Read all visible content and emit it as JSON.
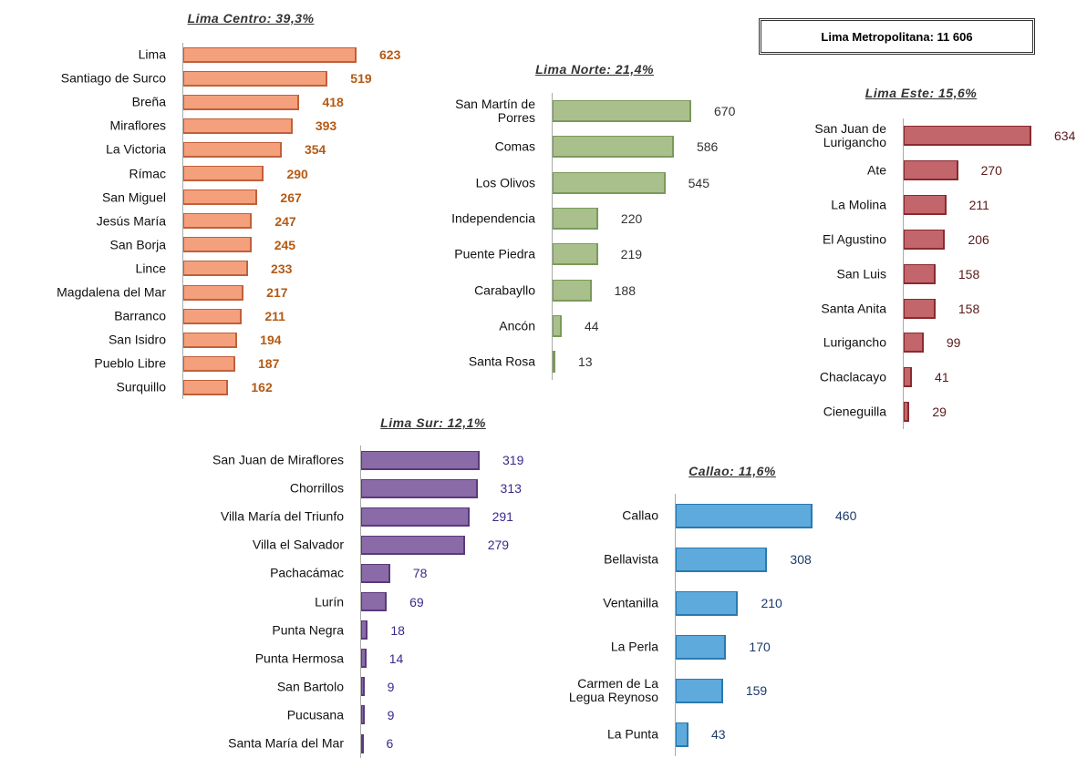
{
  "header": {
    "title": "Lima Metropolitana: 11 606"
  },
  "chart_data": [
    {
      "type": "bar",
      "orientation": "horizontal",
      "title": "Lima Centro: 39,3%",
      "color": "#f4a07c",
      "categories": [
        "Lima",
        "Santiago de Surco",
        "Breña",
        "Miraflores",
        "La Victoria",
        "Rímac",
        "San Miguel",
        "Jesús María",
        "San Borja",
        "Lince",
        "Magdalena del Mar",
        "Barranco",
        "San Isidro",
        "Pueblo Libre",
        "Surquillo"
      ],
      "values": [
        623,
        519,
        418,
        393,
        354,
        290,
        267,
        247,
        245,
        233,
        217,
        211,
        194,
        187,
        162
      ]
    },
    {
      "type": "bar",
      "orientation": "horizontal",
      "title": "Lima Norte: 21,4%",
      "color": "#a9c08c",
      "categories": [
        "San Martín de\nPorres",
        "Comas",
        "Los Olivos",
        "Independencia",
        "Puente Piedra",
        "Carabayllo",
        "Ancón",
        "Santa Rosa"
      ],
      "values": [
        670,
        586,
        545,
        220,
        219,
        188,
        44,
        13
      ]
    },
    {
      "type": "bar",
      "orientation": "horizontal",
      "title": "Lima Este: 15,6%",
      "color": "#c2666c",
      "categories": [
        "San Juan de\nLurigancho",
        "Ate",
        "La Molina",
        "El Agustino",
        "San Luis",
        "Santa Anita",
        "Lurigancho",
        "Chaclacayo",
        "Cieneguilla"
      ],
      "values": [
        634,
        270,
        211,
        206,
        158,
        158,
        99,
        41,
        29
      ]
    },
    {
      "type": "bar",
      "orientation": "horizontal",
      "title": "Lima Sur: 12,1%",
      "color": "#8a6ba8",
      "categories": [
        "San Juan de Miraflores",
        "Chorrillos",
        "Villa María del Triunfo",
        "Villa el Salvador",
        "Pachacámac",
        "Lurín",
        "Punta Negra",
        "Punta Hermosa",
        "San Bartolo",
        "Pucusana",
        "Santa María del Mar"
      ],
      "values": [
        319,
        313,
        291,
        279,
        78,
        69,
        18,
        14,
        9,
        9,
        6
      ]
    },
    {
      "type": "bar",
      "orientation": "horizontal",
      "title": "Callao: 11,6%",
      "color": "#5eaadc",
      "categories": [
        "Callao",
        "Bellavista",
        "Ventanilla",
        "La Perla",
        "Carmen de La\nLegua Reynoso",
        "La Punta"
      ],
      "values": [
        460,
        308,
        210,
        170,
        159,
        43
      ]
    }
  ]
}
